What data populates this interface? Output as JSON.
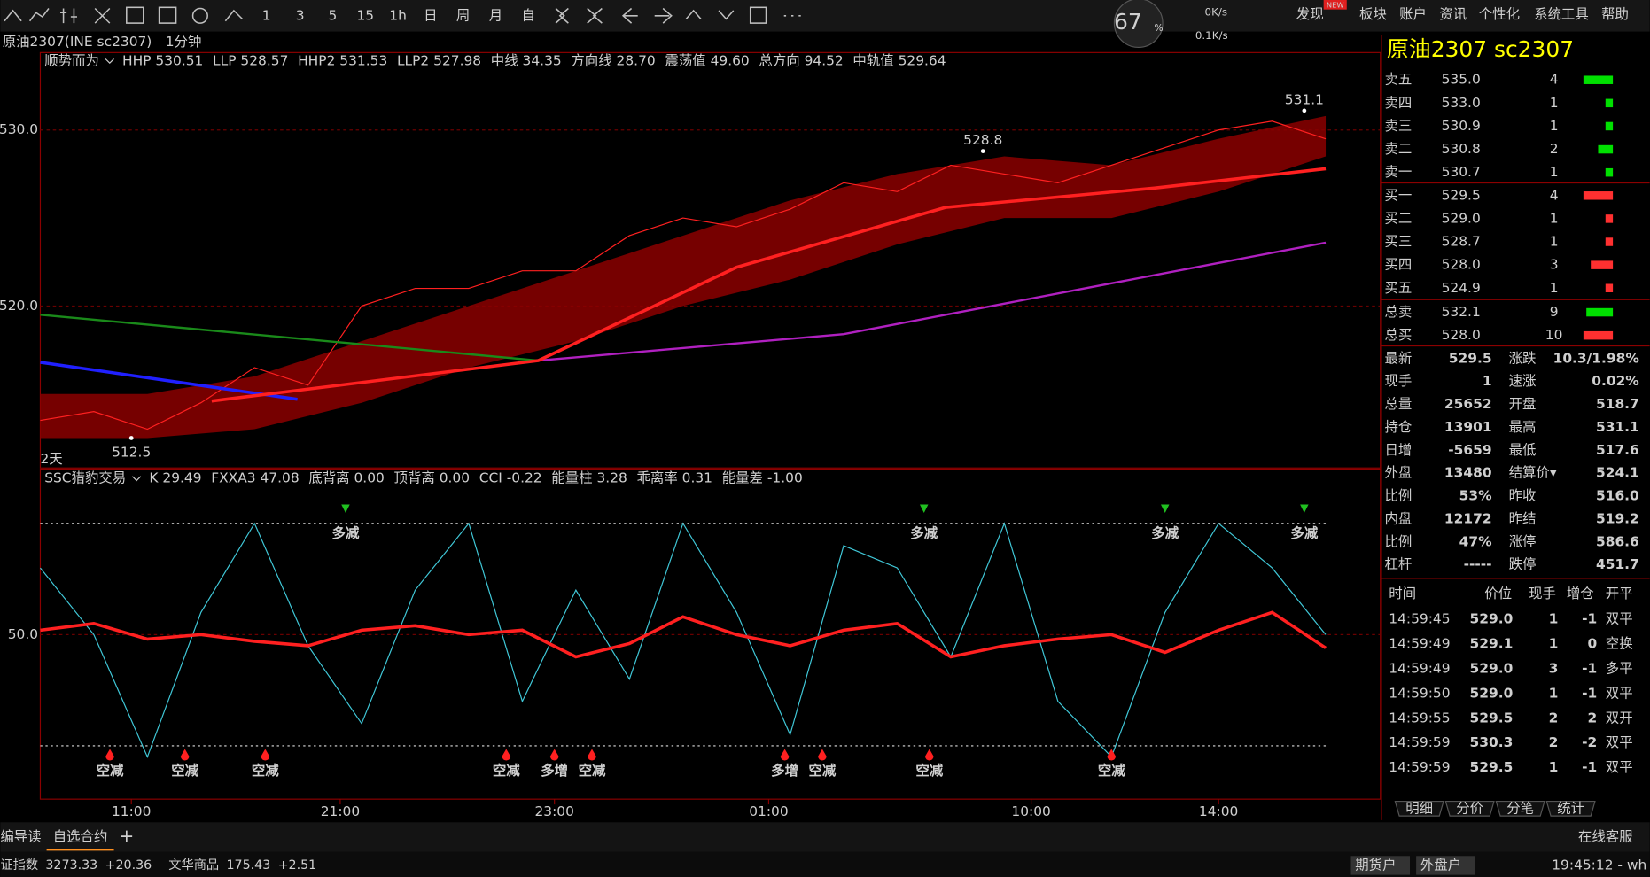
{
  "toolbar": {
    "periods": [
      "1",
      "3",
      "5",
      "15",
      "1h",
      "日",
      "周",
      "月",
      "自"
    ],
    "menu": [
      "发现",
      "板块",
      "账户",
      "资讯",
      "个性化",
      "系统工具",
      "帮助"
    ],
    "badge": "NEW"
  },
  "speed": {
    "percent": "67",
    "unit": "%",
    "up": "0K/s",
    "down": "0.1K/s"
  },
  "instrument_bar": {
    "name": "原油2307(INE sc2307)",
    "period": "1分钟"
  },
  "chart_data": [
    {
      "type": "line",
      "indicator_name": "顺势而为",
      "indicator_values": [
        {
          "text": "HHP 530.51",
          "color": "#e0e0e0"
        },
        {
          "text": "LLP 528.57",
          "color": "#e0e0e0"
        },
        {
          "text": "HHP2 531.53",
          "color": "#ffff00"
        },
        {
          "text": "LLP2 527.98",
          "color": "#ffff00"
        },
        {
          "text": "中线 34.35",
          "color": "#3030ff"
        },
        {
          "text": "方向线 28.70",
          "color": "#ff3030"
        },
        {
          "text": "震荡值 49.60",
          "color": "#ffff00"
        },
        {
          "text": "总方向 94.52",
          "color": "#ff3030"
        },
        {
          "text": "中轨值 529.64",
          "color": "#ffff00"
        }
      ],
      "xlim": [
        0,
        240
      ],
      "ylim": [
        510.8,
        533.8
      ],
      "yticks": [
        {
          "value": 530,
          "label": "530.0"
        },
        {
          "value": 520,
          "label": "520.0"
        }
      ],
      "band": {
        "color": "#8b0000",
        "x": [
          0,
          20,
          40,
          60,
          80,
          100,
          120,
          140,
          160,
          180,
          200,
          220,
          240
        ],
        "upper": [
          515,
          515,
          516,
          518,
          520,
          522,
          524,
          526,
          527.5,
          528.5,
          528,
          529.5,
          530.8
        ],
        "lower": [
          512.5,
          512.5,
          513,
          514.5,
          516.5,
          518,
          520,
          521.5,
          523.5,
          525,
          525,
          526.5,
          528.5
        ]
      },
      "series": [
        {
          "color": "#ff2020",
          "width": 1,
          "x": [
            0,
            10,
            20,
            30,
            40,
            50,
            60,
            70,
            80,
            90,
            100,
            110,
            120,
            130,
            140,
            150,
            160,
            170,
            180,
            190,
            200,
            210,
            220,
            230,
            240
          ],
          "values": [
            513.5,
            514,
            513,
            514.5,
            516.5,
            515.5,
            520,
            521,
            521,
            522,
            522,
            524,
            525,
            524.5,
            525.5,
            527,
            526.5,
            528,
            527.5,
            527,
            528,
            529,
            530,
            530.5,
            529.5
          ]
        },
        {
          "color": "#1a8a1a",
          "width": 2,
          "x": [
            0,
            93
          ],
          "values": [
            519.5,
            516.9
          ]
        },
        {
          "color": "#2020ff",
          "width": 3,
          "x": [
            0,
            48
          ],
          "values": [
            516.8,
            514.7
          ]
        },
        {
          "color": "#b020c0",
          "width": 2,
          "x": [
            93,
            150,
            240
          ],
          "values": [
            516.9,
            518.4,
            523.6
          ]
        },
        {
          "color": "#ff2020",
          "width": 3,
          "x": [
            32,
            93,
            130,
            169,
            208,
            240
          ],
          "values": [
            514.6,
            516.9,
            522.2,
            525.6,
            526.7,
            527.8
          ]
        }
      ],
      "annotations": [
        {
          "x": 236,
          "y": 531.1
        },
        {
          "x": 176,
          "y": 528.8
        },
        {
          "x": 17,
          "y": 512.5
        }
      ],
      "period_label": "2天"
    },
    {
      "type": "line",
      "indicator_name": "SSC猎豹交易",
      "indicator_values": [
        {
          "text": "K 29.49",
          "color": "#e0e0e0"
        },
        {
          "text": "FXXA3 47.08",
          "color": "#e0e0e0"
        },
        {
          "text": "底背离 0.00",
          "color": "#e0e0e0"
        },
        {
          "text": "顶背离 0.00",
          "color": "#e0e0e0"
        },
        {
          "text": "CCI -0.22",
          "color": "#e0e0e0"
        },
        {
          "text": "能量柱 3.28",
          "color": "#40d0e0"
        },
        {
          "text": "乖离率 0.31",
          "color": "#40d0e0"
        },
        {
          "text": "能量差 -1.00",
          "color": "#ff3030"
        }
      ],
      "xlim": [
        0,
        240
      ],
      "ylim": [
        -24,
        124
      ],
      "yticks": [
        {
          "value": 50,
          "label": "50.0"
        }
      ],
      "hlines": [
        0,
        100
      ],
      "xticks": [
        {
          "value": 17,
          "label": "11:00"
        },
        {
          "value": 56,
          "label": "21:00"
        },
        {
          "value": 96,
          "label": "23:00"
        },
        {
          "value": 136,
          "label": "01:00"
        },
        {
          "value": 185,
          "label": "10:00"
        },
        {
          "value": 220,
          "label": "14:00"
        }
      ],
      "series": [
        {
          "color": "#40c8d8",
          "width": 1,
          "x": [
            0,
            10,
            20,
            30,
            40,
            50,
            60,
            70,
            80,
            90,
            100,
            110,
            120,
            130,
            140,
            150,
            160,
            170,
            180,
            190,
            200,
            210,
            220,
            230,
            240
          ],
          "values": [
            80,
            50,
            -5,
            60,
            100,
            45,
            10,
            70,
            100,
            20,
            70,
            30,
            100,
            60,
            5,
            90,
            80,
            40,
            100,
            20,
            -5,
            60,
            100,
            80,
            50
          ]
        },
        {
          "color": "#ff2020",
          "width": 3,
          "x": [
            0,
            10,
            20,
            30,
            40,
            50,
            60,
            70,
            80,
            90,
            100,
            110,
            120,
            130,
            140,
            150,
            160,
            170,
            180,
            190,
            200,
            210,
            220,
            230,
            240
          ],
          "values": [
            52,
            55,
            48,
            50,
            47,
            45,
            52,
            54,
            50,
            52,
            40,
            46,
            58,
            50,
            45,
            52,
            55,
            40,
            45,
            48,
            50,
            42,
            52,
            60,
            44
          ]
        }
      ],
      "top_signals": [
        {
          "x": 57,
          "text": "多减"
        },
        {
          "x": 165,
          "text": "多减"
        },
        {
          "x": 210,
          "text": "多减"
        },
        {
          "x": 236,
          "text": "多减"
        }
      ],
      "bottom_signals": [
        {
          "x": 13,
          "text": "空减"
        },
        {
          "x": 27,
          "text": "空减"
        },
        {
          "x": 42,
          "text": "空减"
        },
        {
          "x": 87,
          "text": "空减"
        },
        {
          "x": 96,
          "text": "多增"
        },
        {
          "x": 103,
          "text": "空减"
        },
        {
          "x": 139,
          "text": "多增"
        },
        {
          "x": 146,
          "text": "空减"
        },
        {
          "x": 166,
          "text": "空减"
        },
        {
          "x": 200,
          "text": "空减"
        }
      ]
    }
  ],
  "quote": {
    "title": "原油2307  sc2307",
    "asks": [
      {
        "label": "卖五",
        "price": "535.0",
        "volume": 4
      },
      {
        "label": "卖四",
        "price": "533.0",
        "volume": 1
      },
      {
        "label": "卖三",
        "price": "530.9",
        "volume": 1
      },
      {
        "label": "卖二",
        "price": "530.8",
        "volume": 2
      },
      {
        "label": "卖一",
        "price": "530.7",
        "volume": 1
      }
    ],
    "bids": [
      {
        "label": "买一",
        "price": "529.5",
        "volume": 4
      },
      {
        "label": "买二",
        "price": "529.0",
        "volume": 1
      },
      {
        "label": "买三",
        "price": "528.7",
        "volume": 1
      },
      {
        "label": "买四",
        "price": "528.0",
        "volume": 3
      },
      {
        "label": "买五",
        "price": "524.9",
        "volume": 1
      }
    ],
    "totals": [
      {
        "label": "总卖",
        "price": "532.1",
        "volume": 9,
        "color": "#00e000"
      },
      {
        "label": "总买",
        "price": "528.0",
        "volume": 10,
        "color": "#ff3030"
      }
    ],
    "stats": [
      [
        {
          "label": "最新",
          "value": "529.5",
          "color": "#ff3030"
        },
        {
          "label": "涨跌",
          "value": "10.3/1.98%",
          "color": "#ff3030"
        }
      ],
      [
        {
          "label": "现手",
          "value": "1",
          "color": "#ffff00"
        },
        {
          "label": "速涨",
          "value": "0.02%",
          "color": "#ff3030"
        }
      ],
      [
        {
          "label": "总量",
          "value": "25652",
          "color": "#ffff00"
        },
        {
          "label": "开盘",
          "value": "518.7",
          "color": "#00e000"
        }
      ],
      [
        {
          "label": "持仓",
          "value": "13901",
          "color": "#ffff00"
        },
        {
          "label": "最高",
          "value": "531.1",
          "color": "#ff3030"
        }
      ],
      [
        {
          "label": "日增",
          "value": "-5659",
          "color": "#ffff00"
        },
        {
          "label": "最低",
          "value": "517.6",
          "color": "#00e000"
        }
      ],
      [
        {
          "label": "外盘",
          "value": "13480",
          "color": "#ffff00"
        },
        {
          "label": "结算价▾",
          "value": "524.1",
          "color": "#ff3030"
        }
      ],
      [
        {
          "label": "比例",
          "value": "53%",
          "color": "#ffff00"
        },
        {
          "label": "昨收",
          "value": "516.0",
          "color": "#e0e0e0"
        }
      ],
      [
        {
          "label": "内盘",
          "value": "12172",
          "color": "#ffff00"
        },
        {
          "label": "昨结",
          "value": "519.2",
          "color": "#e0e0e0"
        }
      ],
      [
        {
          "label": "比例",
          "value": "47%",
          "color": "#ffff00"
        },
        {
          "label": "涨停",
          "value": "586.6",
          "color": "#ff3030"
        }
      ],
      [
        {
          "label": "杠杆",
          "value": "-----",
          "color": "#ffff00"
        },
        {
          "label": "跌停",
          "value": "451.7",
          "color": "#00e000"
        }
      ]
    ],
    "trades_header": [
      "时间",
      "价位",
      "现手",
      "增仓",
      "开平"
    ],
    "trades": [
      {
        "time": "14:59:45",
        "price": "529.0",
        "volume": "1",
        "change": "-1",
        "type": "双平",
        "vcolor": "#00e000"
      },
      {
        "time": "14:59:49",
        "price": "529.1",
        "volume": "1",
        "change": "0",
        "type": "空换",
        "vcolor": "#00e000"
      },
      {
        "time": "14:59:49",
        "price": "529.0",
        "volume": "3",
        "change": "-1",
        "type": "多平",
        "vcolor": "#00e000"
      },
      {
        "time": "14:59:50",
        "price": "529.0",
        "volume": "1",
        "change": "-1",
        "type": "双平",
        "vcolor": "#00e000"
      },
      {
        "time": "14:59:55",
        "price": "529.5",
        "volume": "2",
        "change": "2",
        "type": "双开",
        "vcolor": "#ff3030"
      },
      {
        "time": "14:59:59",
        "price": "530.3",
        "volume": "2",
        "change": "-2",
        "type": "双平",
        "vcolor": "#ff3030"
      },
      {
        "time": "14:59:59",
        "price": "529.5",
        "volume": "1",
        "change": "-1",
        "type": "双平",
        "vcolor": "#00e000"
      }
    ],
    "tabs": [
      "明细",
      "分价",
      "分笔",
      "统计"
    ]
  },
  "bottom": {
    "tabs": [
      "编导读",
      "自选合约",
      "+"
    ],
    "service": "在线客服",
    "ticker": [
      "证指数",
      "3273.33",
      "+20.36",
      "文华商品",
      "175.43",
      "+2.51"
    ],
    "status": [
      "期货户",
      "外盘户",
      "19:45:12 - wh"
    ]
  }
}
